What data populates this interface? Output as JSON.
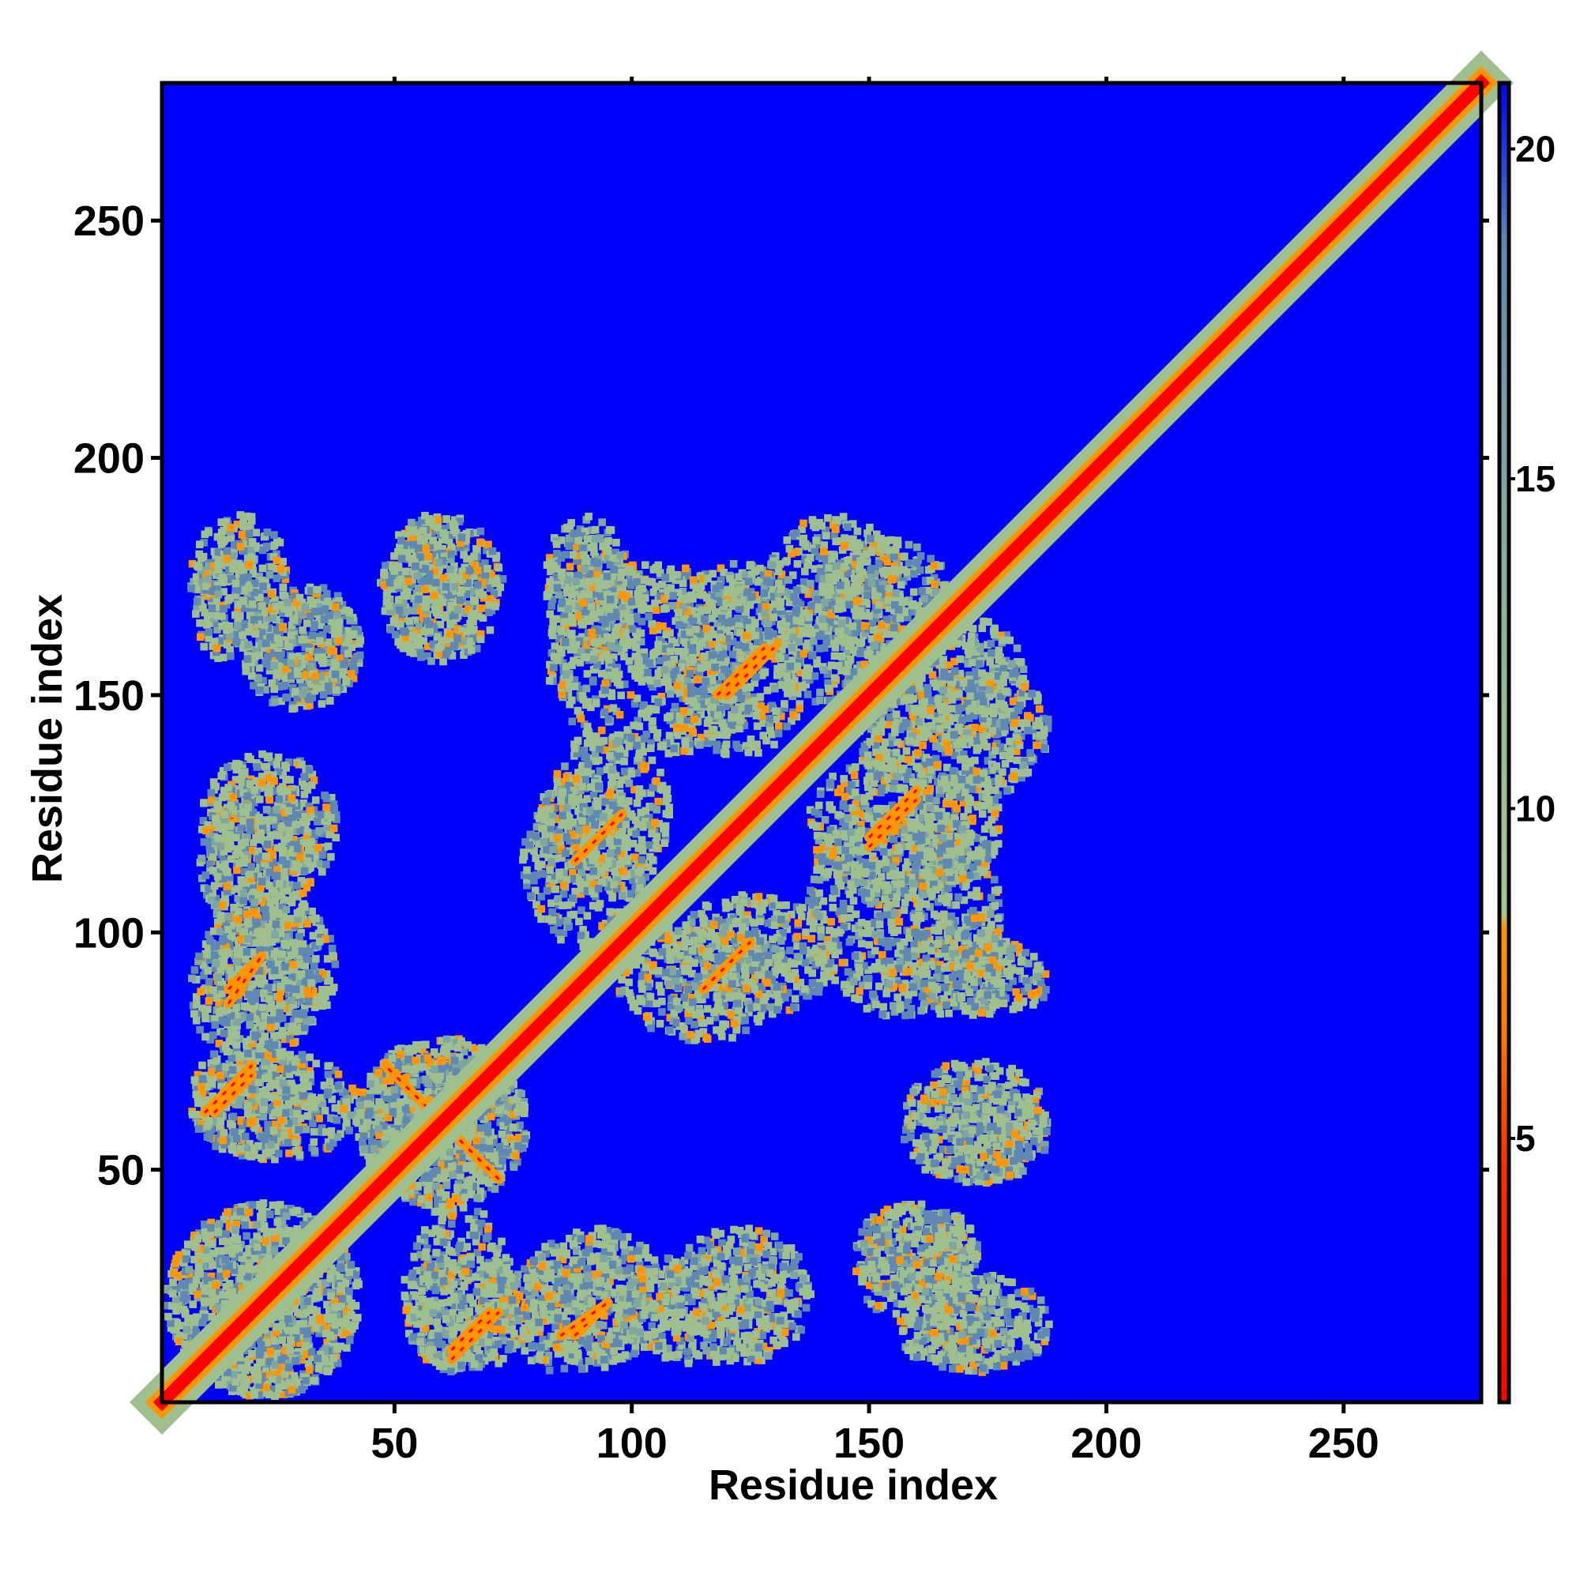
{
  "chart_data": {
    "type": "heatmap",
    "title": "",
    "xlabel": "Residue index",
    "ylabel": "Residue index",
    "xlim": [
      1,
      279
    ],
    "ylim": [
      1,
      279
    ],
    "xticks": [
      50,
      100,
      150,
      200,
      250
    ],
    "yticks": [
      50,
      100,
      150,
      200,
      250
    ],
    "colorbar": {
      "range": [
        1,
        21
      ],
      "ticks": [
        5,
        10,
        15,
        20
      ],
      "colors": {
        "red": "#ff0000",
        "orange": "#ff9500",
        "sage": "#9fbf8f",
        "slate": "#5f88b3",
        "blue": "#0000ff"
      }
    },
    "background_color": "#0000ff",
    "diagonal": {
      "from": 1,
      "to": 279,
      "value": 3.8
    },
    "contact_regions": [
      {
        "x": [
          5,
          40
        ],
        "y": [
          5,
          40
        ],
        "level": 10
      },
      {
        "x": [
          10,
          30
        ],
        "y": [
          55,
          75
        ],
        "level": 9
      },
      {
        "x": [
          12,
          35
        ],
        "y": [
          80,
          105
        ],
        "level": 10
      },
      {
        "x": [
          12,
          35
        ],
        "y": [
          110,
          135
        ],
        "level": 10
      },
      {
        "x": [
          10,
          25
        ],
        "y": [
          165,
          185
        ],
        "level": 10
      },
      {
        "x": [
          25,
          40
        ],
        "y": [
          150,
          170
        ],
        "level": 10
      },
      {
        "x": [
          50,
          70
        ],
        "y": [
          160,
          185
        ],
        "level": 10
      },
      {
        "x": [
          45,
          75
        ],
        "y": [
          45,
          75
        ],
        "level": 9
      },
      {
        "x": [
          55,
          72
        ],
        "y": [
          10,
          40
        ],
        "level": 10
      },
      {
        "x": [
          75,
          100
        ],
        "y": [
          10,
          30
        ],
        "level": 10
      },
      {
        "x": [
          100,
          130
        ],
        "y": [
          12,
          30
        ],
        "level": 11
      },
      {
        "x": [
          150,
          170
        ],
        "y": [
          20,
          40
        ],
        "level": 10
      },
      {
        "x": [
          160,
          180
        ],
        "y": [
          10,
          20
        ],
        "level": 10
      },
      {
        "x": [
          160,
          185
        ],
        "y": [
          50,
          65
        ],
        "level": 10
      },
      {
        "x": [
          85,
          105
        ],
        "y": [
          110,
          140
        ],
        "level": 10
      },
      {
        "x": [
          85,
          100
        ],
        "y": [
          160,
          180
        ],
        "level": 10
      },
      {
        "x": [
          110,
          135
        ],
        "y": [
          140,
          175
        ],
        "level": 10
      },
      {
        "x": [
          100,
          130
        ],
        "y": [
          80,
          100
        ],
        "level": 10
      },
      {
        "x": [
          140,
          175
        ],
        "y": [
          85,
          125
        ],
        "level": 10
      },
      {
        "x": [
          140,
          165
        ],
        "y": [
          160,
          180
        ],
        "level": 10
      },
      {
        "x": [
          150,
          185
        ],
        "y": [
          130,
          155
        ],
        "level": 10
      },
      {
        "x": [
          170,
          185
        ],
        "y": [
          85,
          95
        ],
        "level": 10
      }
    ],
    "strand_pairs": [
      {
        "from": [
          48,
          72
        ],
        "to": [
          72,
          48
        ]
      },
      {
        "from": [
          10,
          62
        ],
        "to": [
          20,
          72
        ]
      },
      {
        "from": [
          15,
          88
        ],
        "to": [
          22,
          95
        ]
      },
      {
        "from": [
          62,
          12
        ],
        "to": [
          70,
          20
        ]
      },
      {
        "from": [
          85,
          15
        ],
        "to": [
          95,
          22
        ]
      },
      {
        "from": [
          118,
          150
        ],
        "to": [
          128,
          160
        ]
      },
      {
        "from": [
          150,
          120
        ],
        "to": [
          160,
          130
        ]
      },
      {
        "from": [
          115,
          88
        ],
        "to": [
          125,
          98
        ]
      },
      {
        "from": [
          88,
          115
        ],
        "to": [
          98,
          125
        ]
      }
    ]
  }
}
